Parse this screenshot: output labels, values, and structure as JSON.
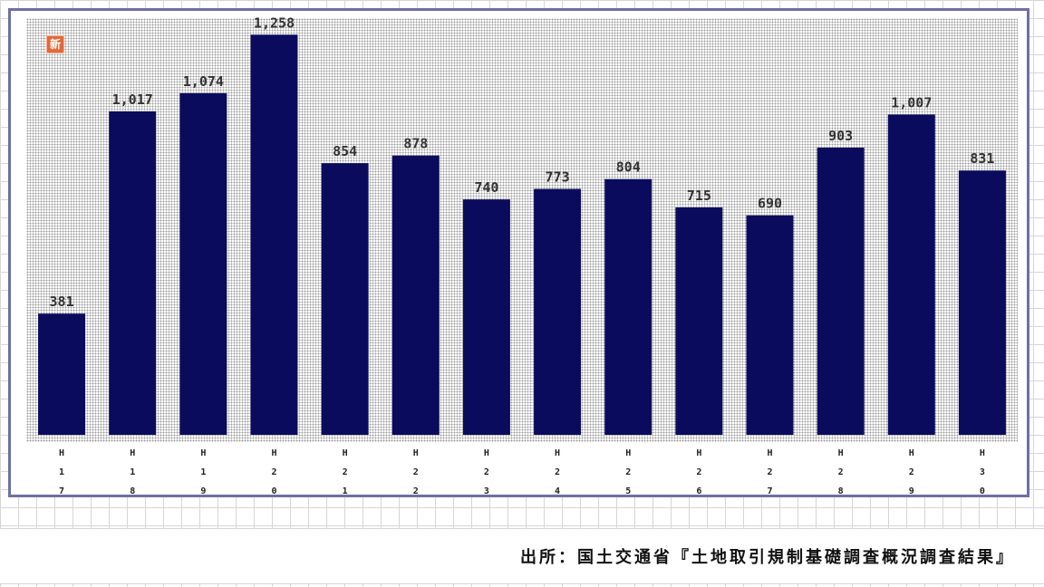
{
  "badge": {
    "text": "新"
  },
  "chart_data": {
    "type": "bar",
    "categories": [
      "H17",
      "H18",
      "H19",
      "H20",
      "H21",
      "H22",
      "H23",
      "H24",
      "H25",
      "H26",
      "H27",
      "H28",
      "H29",
      "H30"
    ],
    "values": [
      381,
      1017,
      1074,
      1258,
      854,
      878,
      740,
      773,
      804,
      715,
      690,
      903,
      1007,
      831
    ],
    "value_labels": [
      "381",
      "1,017",
      "1,074",
      "1,258",
      "854",
      "878",
      "740",
      "773",
      "804",
      "715",
      "690",
      "903",
      "1,007",
      "831"
    ],
    "title": "",
    "xlabel": "",
    "ylabel": "",
    "ylim": [
      0,
      1310
    ],
    "grid": false,
    "bar_color": "#0b0b5e"
  },
  "source": {
    "text": "出所：国土交通省『土地取引規制基礎調査概況調査結果』"
  }
}
